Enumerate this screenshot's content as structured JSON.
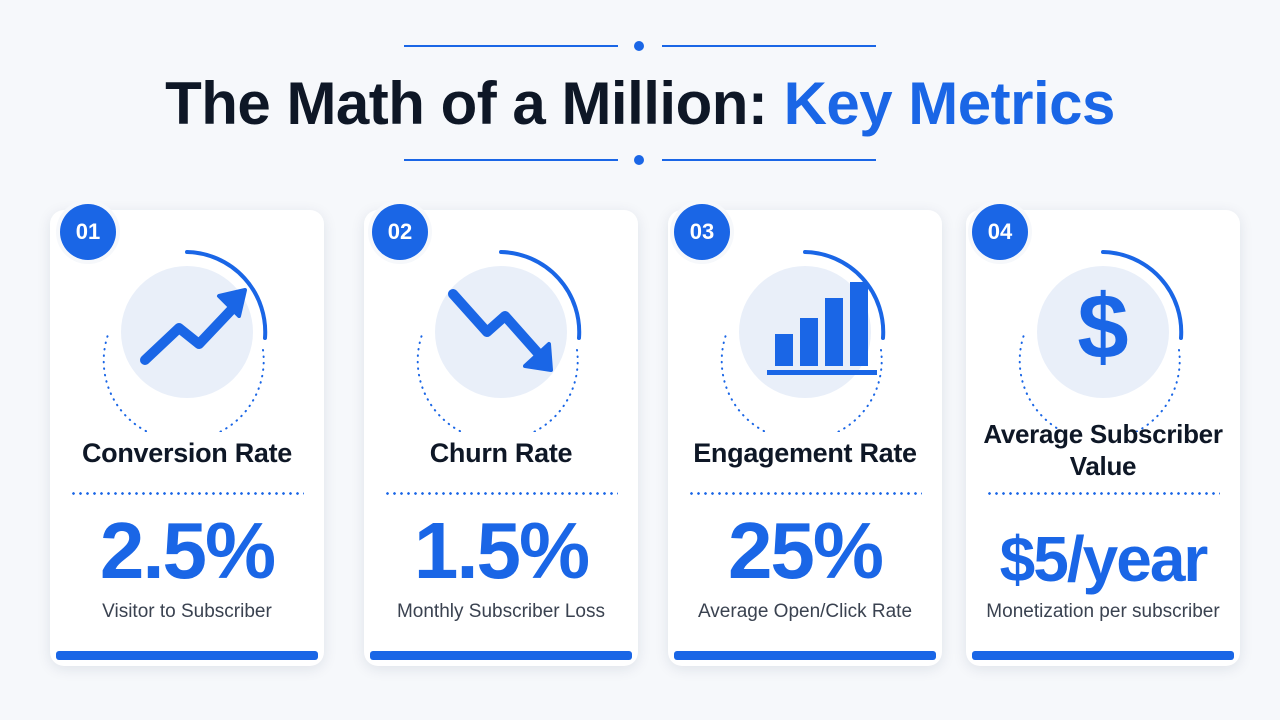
{
  "header": {
    "title_main": "The Math of a Million:",
    "title_accent": "Key Metrics"
  },
  "colors": {
    "accent": "#1a66e6",
    "title": "#0e1726",
    "background": "#f6f8fb",
    "card": "#ffffff",
    "icon_bg": "#e9eff9"
  },
  "cards": [
    {
      "number": "01",
      "icon": "trend-up-icon",
      "title": "Conversion Rate",
      "value": "2.5%",
      "caption": "Visitor to Subscriber"
    },
    {
      "number": "02",
      "icon": "trend-down-icon",
      "title": "Churn Rate",
      "value": "1.5%",
      "caption": "Monthly Subscriber Loss"
    },
    {
      "number": "03",
      "icon": "bar-chart-icon",
      "title": "Engagement Rate",
      "value": "25%",
      "caption": "Average Open/Click Rate"
    },
    {
      "number": "04",
      "icon": "dollar-icon",
      "title": "Average Subscriber Value",
      "value": "$5/year",
      "caption": "Monetization per subscriber"
    }
  ]
}
